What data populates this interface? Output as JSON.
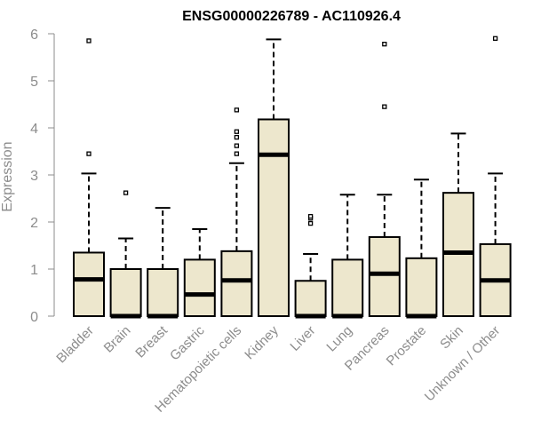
{
  "chart_data": {
    "type": "boxplot",
    "title": "ENSG00000226789 - AC110926.4",
    "ylabel": "Expression",
    "xlabel": "",
    "ylim": [
      0,
      6
    ],
    "yticks": [
      0,
      1,
      2,
      3,
      4,
      5,
      6
    ],
    "box_fill": "#ede7cd",
    "grid": false,
    "categories": [
      "Bladder",
      "Brain",
      "Breast",
      "Gastric",
      "Hematopoietic cells",
      "Kidney",
      "Liver",
      "Lung",
      "Pancreas",
      "Prostate",
      "Skin",
      "Unknown / Other"
    ],
    "boxes": [
      {
        "q1": 0.0,
        "median": 0.78,
        "q3": 1.35,
        "whisker_low": 0.0,
        "whisker_high": 3.03,
        "outliers": [
          3.45,
          5.85
        ]
      },
      {
        "q1": 0.0,
        "median": 0.0,
        "q3": 1.0,
        "whisker_low": 0.0,
        "whisker_high": 1.65,
        "outliers": [
          2.62
        ]
      },
      {
        "q1": 0.0,
        "median": 0.0,
        "q3": 1.0,
        "whisker_low": 0.0,
        "whisker_high": 2.3,
        "outliers": []
      },
      {
        "q1": 0.0,
        "median": 0.46,
        "q3": 1.2,
        "whisker_low": 0.0,
        "whisker_high": 1.85,
        "outliers": []
      },
      {
        "q1": 0.0,
        "median": 0.76,
        "q3": 1.38,
        "whisker_low": 0.0,
        "whisker_high": 3.25,
        "outliers": [
          3.45,
          3.62,
          3.8,
          3.92,
          4.38
        ]
      },
      {
        "q1": 0.0,
        "median": 3.43,
        "q3": 4.18,
        "whisker_low": 0.0,
        "whisker_high": 5.88,
        "outliers": []
      },
      {
        "q1": 0.0,
        "median": 0.0,
        "q3": 0.75,
        "whisker_low": 0.0,
        "whisker_high": 1.32,
        "outliers": [
          1.97,
          2.08,
          2.12
        ]
      },
      {
        "q1": 0.0,
        "median": 0.0,
        "q3": 1.2,
        "whisker_low": 0.0,
        "whisker_high": 2.58,
        "outliers": []
      },
      {
        "q1": 0.0,
        "median": 0.9,
        "q3": 1.68,
        "whisker_low": 0.0,
        "whisker_high": 2.58,
        "outliers": [
          4.45,
          5.78
        ]
      },
      {
        "q1": 0.0,
        "median": 0.0,
        "q3": 1.23,
        "whisker_low": 0.0,
        "whisker_high": 2.9,
        "outliers": []
      },
      {
        "q1": 0.0,
        "median": 1.35,
        "q3": 2.62,
        "whisker_low": 0.0,
        "whisker_high": 3.88,
        "outliers": []
      },
      {
        "q1": 0.0,
        "median": 0.76,
        "q3": 1.53,
        "whisker_low": 0.0,
        "whisker_high": 3.03,
        "outliers": [
          5.9
        ]
      }
    ]
  }
}
